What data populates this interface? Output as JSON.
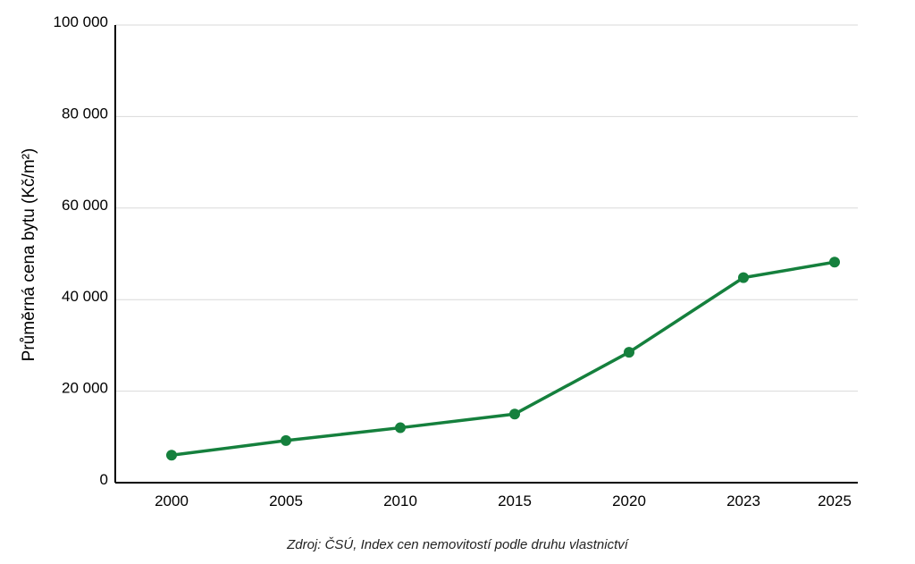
{
  "chart_data": {
    "type": "line",
    "title": "",
    "xlabel": "",
    "ylabel": "Průměrná cena bytu (Kč/m²)",
    "categories": [
      "2000",
      "2005",
      "2010",
      "2015",
      "2020",
      "2023",
      "2025"
    ],
    "series": [
      {
        "values": [
          6000,
          9200,
          12000,
          15000,
          28500,
          44800,
          48200
        ]
      }
    ],
    "ylim": [
      0,
      100000
    ],
    "yticks": [
      0,
      20000,
      40000,
      60000,
      80000,
      100000
    ],
    "ytick_labels": [
      "0",
      "20 000",
      "40 000",
      "60 000",
      "80 000",
      "100 000"
    ],
    "grid": "horizontal",
    "legend": "none",
    "line_color": "#15803d",
    "source_note": "Zdroj: ČSÚ, Index cen nemovitostí podle druhu vlastnictví"
  }
}
